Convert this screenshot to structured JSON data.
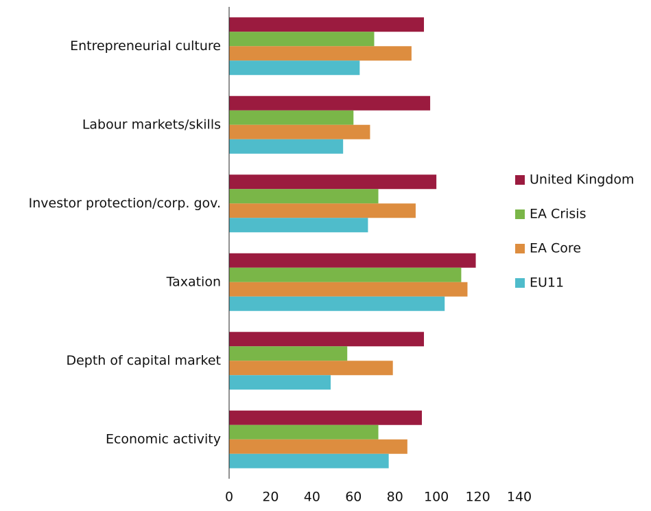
{
  "chart_data": {
    "type": "hbar",
    "categories": [
      "Entrepreneurial culture",
      "Labour markets/skills",
      "Investor protection/corp. gov.",
      "Taxation",
      "Depth of capital market",
      "Economic activity"
    ],
    "series": [
      {
        "name": "United Kingdom",
        "color": "#9b1b3f",
        "values": [
          94,
          97,
          100,
          119,
          94,
          93
        ]
      },
      {
        "name": "EA Crisis",
        "color": "#7ab648",
        "values": [
          70,
          60,
          72,
          112,
          57,
          72
        ]
      },
      {
        "name": "EA Core",
        "color": "#dd8d3f",
        "values": [
          88,
          68,
          90,
          115,
          79,
          86
        ]
      },
      {
        "name": "EU11",
        "color": "#4fbccb",
        "values": [
          63,
          55,
          67,
          104,
          49,
          77
        ]
      }
    ],
    "xlim": [
      0,
      140
    ],
    "xticks": [
      0,
      20,
      40,
      60,
      80,
      100,
      120,
      140
    ],
    "legend": "right"
  }
}
